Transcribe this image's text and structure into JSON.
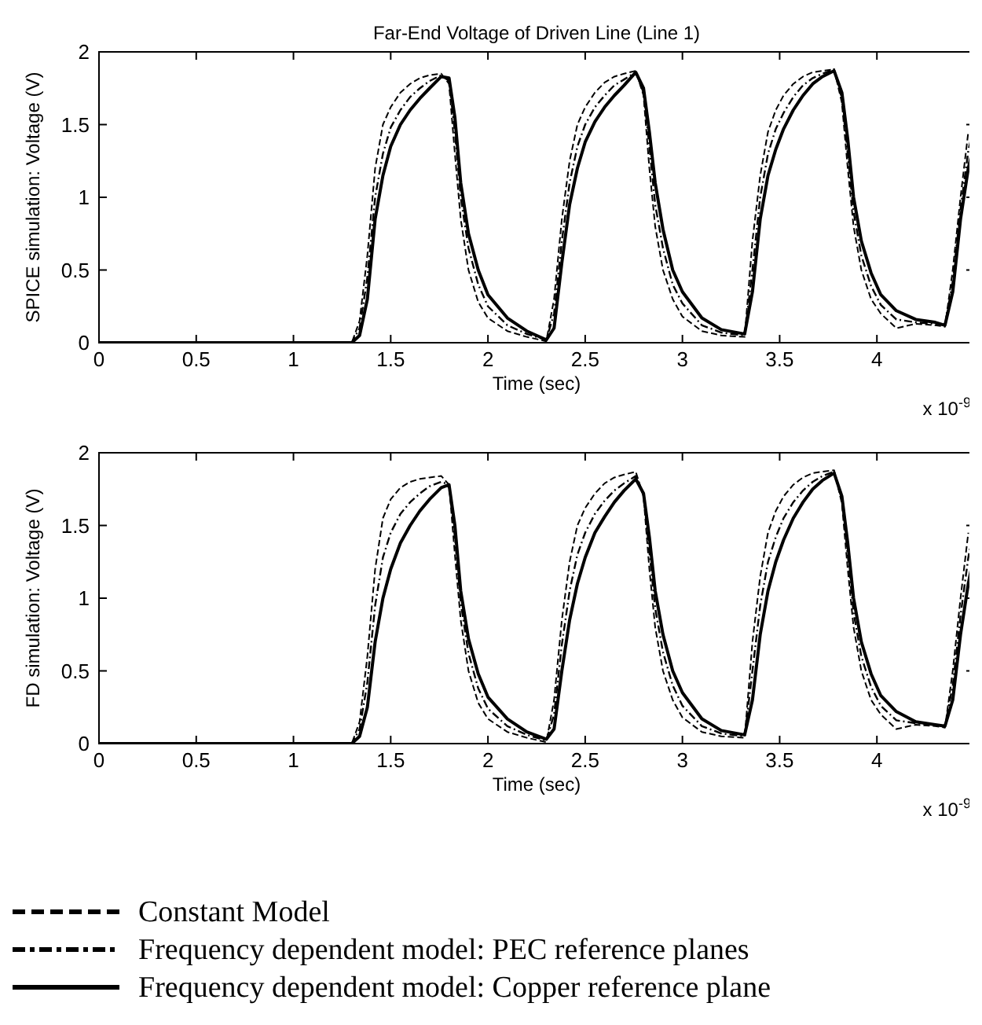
{
  "chart_data": [
    {
      "type": "line",
      "title": "Far-End Voltage of Driven Line (Line 1)",
      "xlabel": "Time (sec)",
      "ylabel": "SPICE simulation: Voltage (V)",
      "annotations": [
        "x 10$^{-9}$"
      ],
      "xlim": [
        0,
        4.5
      ],
      "xticks": [
        0,
        0.5,
        1,
        1.5,
        2,
        2.5,
        3,
        3.5,
        4
      ],
      "ylim": [
        0,
        2
      ],
      "yticks": [
        0,
        0.5,
        1,
        1.5,
        2
      ],
      "x": [
        0,
        1.3,
        1.34,
        1.38,
        1.42,
        1.46,
        1.5,
        1.55,
        1.6,
        1.65,
        1.7,
        1.76,
        1.8,
        1.83,
        1.86,
        1.9,
        1.95,
        2.0,
        2.1,
        2.2,
        2.3,
        2.34,
        2.38,
        2.42,
        2.46,
        2.5,
        2.55,
        2.6,
        2.65,
        2.7,
        2.76,
        2.8,
        2.83,
        2.86,
        2.9,
        2.95,
        3.0,
        3.1,
        3.2,
        3.32,
        3.36,
        3.4,
        3.44,
        3.48,
        3.52,
        3.57,
        3.62,
        3.67,
        3.72,
        3.78,
        3.82,
        3.85,
        3.88,
        3.92,
        3.97,
        4.02,
        4.1,
        4.2,
        4.3,
        4.35,
        4.39,
        4.43,
        4.47,
        4.5
      ],
      "series": [
        {
          "color": "#000000",
          "line_style": "dashed",
          "values": [
            0,
            0,
            0.15,
            0.6,
            1.2,
            1.5,
            1.62,
            1.72,
            1.78,
            1.82,
            1.84,
            1.85,
            1.78,
            1.3,
            0.85,
            0.5,
            0.28,
            0.17,
            0.08,
            0.04,
            0.01,
            0.3,
            0.85,
            1.25,
            1.5,
            1.62,
            1.72,
            1.79,
            1.83,
            1.85,
            1.87,
            1.7,
            1.2,
            0.8,
            0.5,
            0.3,
            0.18,
            0.08,
            0.05,
            0.04,
            0.7,
            1.15,
            1.45,
            1.6,
            1.7,
            1.78,
            1.83,
            1.86,
            1.87,
            1.88,
            1.65,
            1.2,
            0.8,
            0.5,
            0.3,
            0.2,
            0.1,
            0.13,
            0.12,
            0.11,
            0.5,
            1.0,
            1.45,
            null
          ]
        },
        {
          "color": "#000000",
          "line_style": "dashdot",
          "values": [
            0,
            0,
            0.1,
            0.45,
            1.0,
            1.3,
            1.48,
            1.6,
            1.69,
            1.75,
            1.8,
            1.84,
            1.8,
            1.45,
            1.0,
            0.65,
            0.4,
            0.25,
            0.12,
            0.06,
            0.02,
            0.2,
            0.7,
            1.1,
            1.35,
            1.5,
            1.62,
            1.7,
            1.77,
            1.81,
            1.86,
            1.72,
            1.35,
            0.95,
            0.65,
            0.4,
            0.27,
            0.12,
            0.07,
            0.05,
            0.5,
            1.0,
            1.3,
            1.47,
            1.58,
            1.69,
            1.77,
            1.82,
            1.85,
            1.88,
            1.68,
            1.3,
            0.9,
            0.6,
            0.39,
            0.26,
            0.16,
            0.14,
            0.13,
            0.12,
            0.42,
            0.92,
            1.32,
            1.5
          ]
        },
        {
          "color": "#000000",
          "line_style": "solid",
          "values": [
            0,
            0,
            0.05,
            0.3,
            0.85,
            1.15,
            1.35,
            1.5,
            1.6,
            1.68,
            1.75,
            1.83,
            1.82,
            1.55,
            1.1,
            0.75,
            0.5,
            0.33,
            0.17,
            0.08,
            0.02,
            0.1,
            0.55,
            0.95,
            1.2,
            1.38,
            1.52,
            1.62,
            1.7,
            1.77,
            1.86,
            1.75,
            1.45,
            1.1,
            0.78,
            0.5,
            0.35,
            0.17,
            0.09,
            0.06,
            0.35,
            0.85,
            1.15,
            1.33,
            1.47,
            1.6,
            1.7,
            1.78,
            1.83,
            1.87,
            1.72,
            1.4,
            1.0,
            0.7,
            0.48,
            0.33,
            0.22,
            0.16,
            0.14,
            0.12,
            0.35,
            0.85,
            1.2,
            1.37
          ]
        }
      ]
    },
    {
      "type": "line",
      "xlabel": "Time (sec)",
      "ylabel": "FD simulation: Voltage (V)",
      "annotations": [
        "x 10$^{-9}$"
      ],
      "xlim": [
        0,
        4.5
      ],
      "xticks": [
        0,
        0.5,
        1,
        1.5,
        2,
        2.5,
        3,
        3.5,
        4
      ],
      "ylim": [
        0,
        2
      ],
      "yticks": [
        0,
        0.5,
        1,
        1.5,
        2
      ],
      "legend": "bottom",
      "x": [
        0,
        1.3,
        1.34,
        1.38,
        1.42,
        1.46,
        1.5,
        1.55,
        1.6,
        1.65,
        1.7,
        1.76,
        1.8,
        1.83,
        1.86,
        1.9,
        1.95,
        2.0,
        2.1,
        2.2,
        2.3,
        2.34,
        2.38,
        2.42,
        2.46,
        2.5,
        2.55,
        2.6,
        2.65,
        2.7,
        2.76,
        2.8,
        2.83,
        2.86,
        2.9,
        2.95,
        3.0,
        3.1,
        3.2,
        3.32,
        3.36,
        3.4,
        3.44,
        3.48,
        3.52,
        3.57,
        3.62,
        3.67,
        3.72,
        3.78,
        3.82,
        3.85,
        3.88,
        3.92,
        3.97,
        4.02,
        4.1,
        4.2,
        4.3,
        4.35,
        4.39,
        4.43,
        4.47,
        4.5
      ],
      "series": [
        {
          "name": "Constant Model",
          "color": "#000000",
          "line_style": "dashed",
          "values": [
            0,
            0,
            0.15,
            0.6,
            1.2,
            1.55,
            1.68,
            1.76,
            1.8,
            1.82,
            1.83,
            1.84,
            1.78,
            1.3,
            0.85,
            0.5,
            0.28,
            0.17,
            0.08,
            0.04,
            0.01,
            0.3,
            0.85,
            1.25,
            1.5,
            1.62,
            1.72,
            1.79,
            1.83,
            1.85,
            1.87,
            1.7,
            1.2,
            0.8,
            0.5,
            0.3,
            0.18,
            0.08,
            0.05,
            0.04,
            0.7,
            1.15,
            1.45,
            1.6,
            1.7,
            1.78,
            1.83,
            1.86,
            1.87,
            1.88,
            1.65,
            1.2,
            0.8,
            0.5,
            0.3,
            0.2,
            0.1,
            0.13,
            0.12,
            0.11,
            0.5,
            1.0,
            1.45,
            null
          ]
        },
        {
          "name": "Frequency dependent model: PEC reference planes",
          "color": "#000000",
          "line_style": "dashdot",
          "values": [
            0,
            0,
            0.1,
            0.42,
            0.95,
            1.28,
            1.45,
            1.58,
            1.66,
            1.72,
            1.77,
            1.8,
            1.78,
            1.42,
            0.97,
            0.62,
            0.38,
            0.24,
            0.12,
            0.06,
            0.02,
            0.2,
            0.68,
            1.05,
            1.3,
            1.45,
            1.58,
            1.67,
            1.74,
            1.79,
            1.84,
            1.71,
            1.32,
            0.93,
            0.63,
            0.4,
            0.26,
            0.12,
            0.07,
            0.05,
            0.5,
            0.95,
            1.25,
            1.42,
            1.55,
            1.66,
            1.74,
            1.8,
            1.84,
            1.87,
            1.68,
            1.3,
            0.9,
            0.6,
            0.39,
            0.26,
            0.16,
            0.14,
            0.13,
            0.12,
            0.4,
            0.88,
            1.28,
            1.48
          ]
        },
        {
          "name": "Frequency dependent model: Copper reference plane",
          "color": "#000000",
          "line_style": "solid",
          "values": [
            0,
            0,
            0.05,
            0.25,
            0.7,
            1.0,
            1.2,
            1.38,
            1.5,
            1.6,
            1.68,
            1.76,
            1.78,
            1.5,
            1.05,
            0.72,
            0.48,
            0.32,
            0.17,
            0.08,
            0.03,
            0.1,
            0.5,
            0.85,
            1.1,
            1.28,
            1.45,
            1.56,
            1.66,
            1.74,
            1.82,
            1.72,
            1.42,
            1.05,
            0.75,
            0.5,
            0.35,
            0.17,
            0.09,
            0.06,
            0.3,
            0.75,
            1.05,
            1.25,
            1.4,
            1.55,
            1.66,
            1.75,
            1.81,
            1.86,
            1.7,
            1.38,
            1.0,
            0.7,
            0.48,
            0.33,
            0.22,
            0.15,
            0.13,
            0.12,
            0.3,
            0.75,
            1.1,
            1.3
          ]
        }
      ]
    }
  ]
}
